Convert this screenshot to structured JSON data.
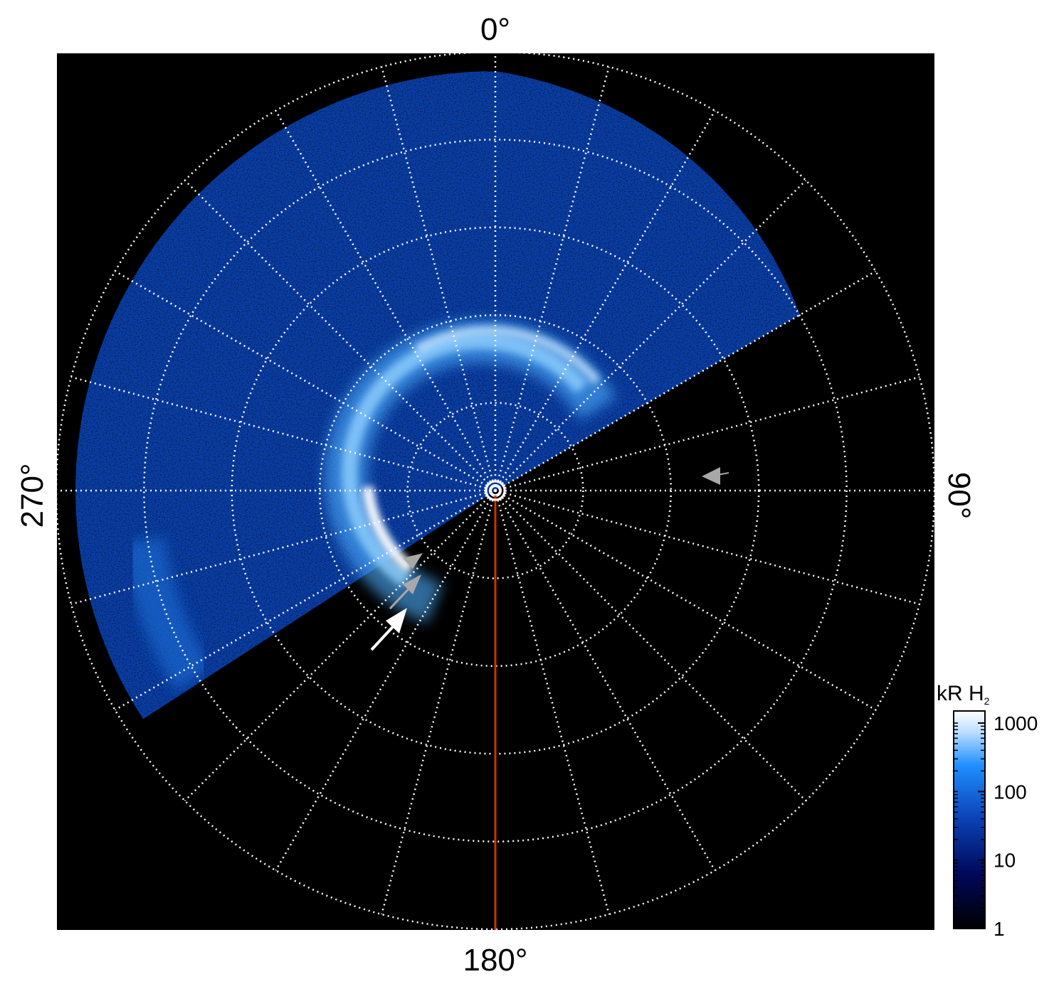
{
  "figure": {
    "angle_labels": {
      "top": "0°",
      "right": "90°",
      "bottom": "180°",
      "left": "270°"
    },
    "colorbar": {
      "title_main": "kR H",
      "title_sub": "2",
      "ticks": [
        {
          "value": 1000,
          "label": "1000"
        },
        {
          "value": 100,
          "label": "100"
        },
        {
          "value": 10,
          "label": "10"
        },
        {
          "value": 1,
          "label": "1"
        }
      ],
      "scale": "log",
      "range": [
        1,
        1500
      ]
    },
    "grid": {
      "ring_count": 5,
      "spoke_step_degrees": 15,
      "style": "dotted",
      "color": "#ffffff"
    },
    "colors": {
      "background": "#000000",
      "emission_dim": "#0a3fa8",
      "emission_mid": "#1f8fff",
      "emission_bright": "#ffffff",
      "reference_line": "#cc3300",
      "arrow_white": "#ffffff",
      "arrow_gray": "#a0a0a0"
    }
  }
}
